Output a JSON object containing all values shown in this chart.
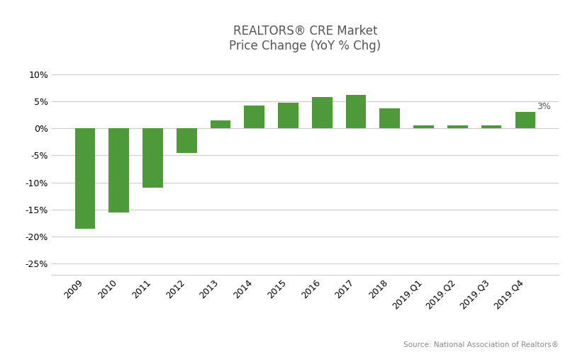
{
  "categories": [
    "2009",
    "2010",
    "2011",
    "2012",
    "2013",
    "2014",
    "2015",
    "2016",
    "2017",
    "2018",
    "2019.Q1",
    "2019.Q2",
    "2019.Q3",
    "2019.Q4"
  ],
  "values": [
    -18.5,
    -15.5,
    -11.0,
    -4.5,
    1.5,
    4.2,
    4.8,
    5.8,
    6.2,
    3.7,
    0.5,
    0.6,
    0.6,
    3.0
  ],
  "bar_color": "#4e9a3a",
  "title_line1": "REALTORS® CRE Market",
  "title_line2": "Price Change (YoY % Chg)",
  "ylim": [
    -27,
    12
  ],
  "yticks": [
    -25,
    -20,
    -15,
    -10,
    -5,
    0,
    5,
    10
  ],
  "annotation_label": "3%",
  "annotation_index": 13,
  "source_text": "Source: National Association of Realtors®",
  "background_color": "#ffffff",
  "grid_color": "#cccccc",
  "title_fontsize": 12,
  "tick_fontsize": 9,
  "annotation_fontsize": 9,
  "source_fontsize": 7.5
}
